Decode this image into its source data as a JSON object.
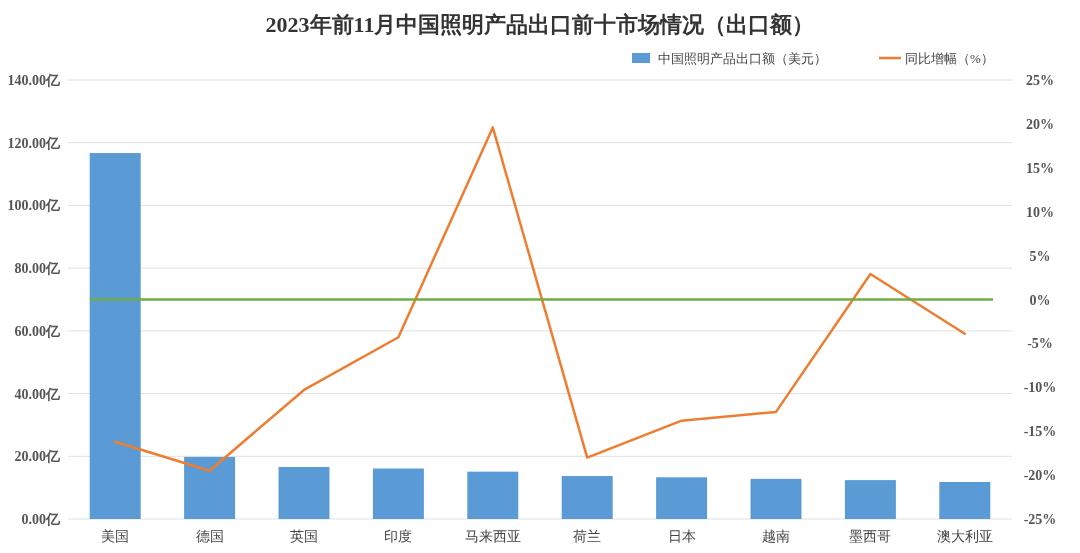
{
  "chart_data": {
    "type": "bar",
    "title": "2023年前11月中国照明产品出口前十市场情况（出口额）",
    "categories": [
      "美国",
      "德国",
      "英国",
      "印度",
      "马来西亚",
      "荷兰",
      "日本",
      "越南",
      "墨西哥",
      "澳大利亚"
    ],
    "series": [
      {
        "name": "中国照明产品出口额（美元）",
        "color": "#5b9bd5",
        "values": [
          116.7,
          19.8,
          16.6,
          16.1,
          15.1,
          13.7,
          13.3,
          12.8,
          12.4,
          11.8
        ]
      },
      {
        "name": "同比增幅（%）",
        "type": "line",
        "axis": "y2",
        "color": "#ed7d31",
        "values": [
          -16.2,
          -19.5,
          -10.3,
          -4.3,
          19.6,
          -18.0,
          -13.8,
          -12.8,
          2.9,
          -3.9
        ]
      }
    ],
    "ylim": [
      0,
      140
    ],
    "yticks": [
      {
        "value": 0,
        "label": "0.00亿"
      },
      {
        "value": 20,
        "label": "20.00亿"
      },
      {
        "value": 40,
        "label": "40.00亿"
      },
      {
        "value": 60,
        "label": "60.00亿"
      },
      {
        "value": 80,
        "label": "80.00亿"
      },
      {
        "value": 100,
        "label": "100.00亿"
      },
      {
        "value": 120,
        "label": "120.00亿"
      },
      {
        "value": 140,
        "label": "140.00亿"
      }
    ],
    "y2lim": [
      -25,
      25
    ],
    "y2ticks": [
      {
        "value": -25,
        "label": "-25%"
      },
      {
        "value": -20,
        "label": "-20%"
      },
      {
        "value": -15,
        "label": "-15%"
      },
      {
        "value": -10,
        "label": "-10%"
      },
      {
        "value": -5,
        "label": "-5%"
      },
      {
        "value": 0,
        "label": "0%"
      },
      {
        "value": 5,
        "label": "5%"
      },
      {
        "value": 10,
        "label": "10%"
      },
      {
        "value": 15,
        "label": "15%"
      },
      {
        "value": 20,
        "label": "20%"
      },
      {
        "value": 25,
        "label": "25%"
      }
    ],
    "ref_lines": [
      {
        "axis": "y2",
        "value": 0,
        "color": "#70ad47"
      }
    ],
    "grid": "y",
    "legend": "top right"
  }
}
